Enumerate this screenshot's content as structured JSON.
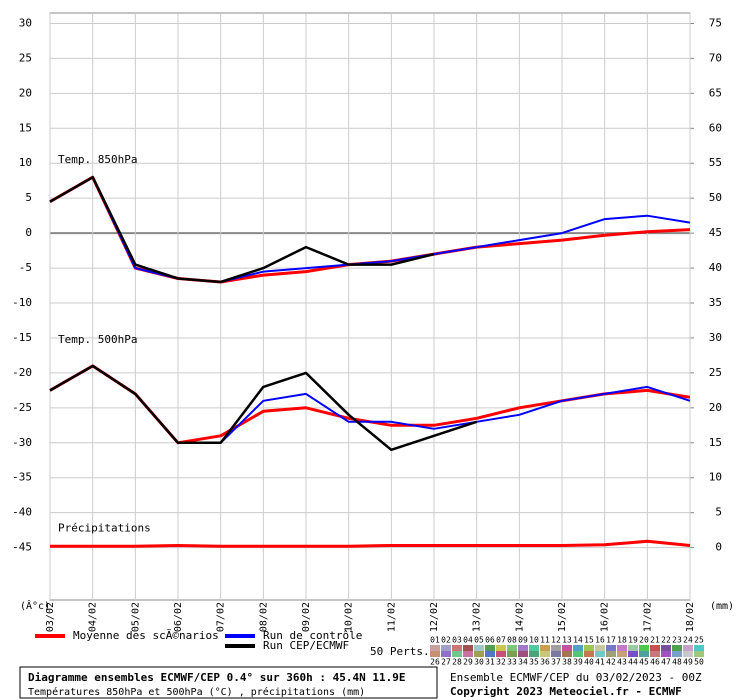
{
  "chart_data": {
    "type": "line",
    "categories": [
      "03/02",
      "04/02",
      "05/02",
      "06/02",
      "07/02",
      "08/02",
      "09/02",
      "10/02",
      "11/02",
      "12/02",
      "13/02",
      "14/02",
      "15/02",
      "16/02",
      "17/02",
      "18/02"
    ],
    "ylim": [
      -52.5,
      31.5
    ],
    "yticks": [
      -45,
      -40,
      -35,
      -30,
      -25,
      -20,
      -15,
      -10,
      -5,
      0,
      5,
      10,
      15,
      20,
      25,
      30
    ],
    "y2lim": [
      -7.5,
      76.5
    ],
    "y2ticks": [
      0,
      5,
      10,
      15,
      20,
      25,
      30,
      35,
      40,
      45,
      50,
      55,
      60,
      65,
      70,
      75
    ],
    "grid": true,
    "y_unit_label": "(Â°c)",
    "y2_unit_label": "(mm)",
    "annotations": [
      "Temp. 850hPa",
      "Temp. 500hPa",
      "Précipitations"
    ],
    "series": [
      {
        "name": "Moyenne des scÃ©narios",
        "color": "#ff0000",
        "width": 3,
        "values": [
          4.5,
          8,
          -5,
          -6.5,
          -7,
          -6,
          -5.5,
          -4.5,
          -4,
          -3,
          -2,
          -1.5,
          -1,
          -0.3,
          0.2,
          0.5
        ]
      },
      {
        "name": "Moyenne des scÃ©narios",
        "color": "#ff0000",
        "width": 3,
        "legend": false,
        "values": [
          -22.5,
          -19,
          -23,
          -30,
          -29,
          -25.5,
          -25,
          -26.5,
          -27.5,
          -27.5,
          -26.5,
          -25,
          -24,
          -23,
          -22.5,
          -23.5
        ]
      },
      {
        "name": "Moyenne des scÃ©narios",
        "color": "#ff0000",
        "width": 3,
        "axis": "y2",
        "legend": false,
        "values": [
          0.2,
          0.2,
          0.2,
          0.3,
          0.2,
          0.2,
          0.2,
          0.2,
          0.3,
          0.3,
          0.3,
          0.3,
          0.3,
          0.4,
          0.9,
          0.3
        ]
      },
      {
        "name": "Run de contrôle",
        "color": "#0000ff",
        "width": 2,
        "values": [
          4.5,
          8,
          -5,
          -6.5,
          -7,
          -5.5,
          -5,
          -4.5,
          -4,
          -3,
          -2,
          -1,
          0,
          2,
          2.5,
          1.5
        ]
      },
      {
        "name": "Run de contrôle",
        "color": "#0000ff",
        "width": 2,
        "legend": false,
        "values": [
          -22.5,
          -19,
          -23,
          -30,
          -30,
          -24,
          -23,
          -27,
          -27,
          -28,
          -27,
          -26,
          -24,
          -23,
          -22,
          -24
        ]
      },
      {
        "name": "Run CEP/ECMWF",
        "color": "#000000",
        "width": 2.5,
        "values": [
          4.5,
          8,
          -4.5,
          -6.5,
          -7,
          -5,
          -2,
          -4.5,
          -4.5,
          -3,
          null,
          null,
          null,
          null,
          null,
          null
        ]
      },
      {
        "name": "Run CEP/ECMWF",
        "color": "#000000",
        "width": 2.5,
        "legend": false,
        "values": [
          -22.5,
          -19,
          -23,
          -30,
          -30,
          -22,
          -20,
          -26,
          -31,
          -29,
          -27,
          null,
          null,
          null,
          null,
          null
        ]
      }
    ],
    "perturbations_label": "50 Perts.",
    "perturbation_labels": [
      "01",
      "02",
      "03",
      "04",
      "05",
      "06",
      "07",
      "08",
      "09",
      "10",
      "11",
      "12",
      "13",
      "14",
      "15",
      "16",
      "17",
      "18",
      "19",
      "20",
      "21",
      "22",
      "23",
      "24",
      "25",
      "26",
      "27",
      "28",
      "29",
      "30",
      "31",
      "32",
      "33",
      "34",
      "35",
      "36",
      "37",
      "38",
      "39",
      "40",
      "41",
      "42",
      "43",
      "44",
      "45",
      "46",
      "47",
      "48",
      "49",
      "50"
    ],
    "perturbation_colors": [
      "#c8a0a0",
      "#a0a0c8",
      "#c87878",
      "#a05050",
      "#a0c8c8",
      "#50a050",
      "#c8c850",
      "#78c878",
      "#a078c8",
      "#50c8a0",
      "#c8a050",
      "#a0a0a0",
      "#c850a0",
      "#50a0c8",
      "#a0c850",
      "#c8c8a0",
      "#7878c8",
      "#c878c8",
      "#a0c8a0",
      "#50c850",
      "#c85050",
      "#7850a0",
      "#50a050",
      "#c8a0c8",
      "#50c8c8",
      "#c89070",
      "#9070c8",
      "#70c890",
      "#c870a0",
      "#a0a050",
      "#5078c8",
      "#c85078",
      "#78a050",
      "#a05078",
      "#50a078",
      "#c8c878",
      "#7878a0",
      "#a07850",
      "#50c878",
      "#c87850",
      "#78c8c8",
      "#a0a078",
      "#c8a078",
      "#7850c8",
      "#50a0a0",
      "#c87878",
      "#a050c8",
      "#78a0c8",
      "#c8c8c8",
      "#a0c878"
    ]
  },
  "footer": {
    "title": "Diagramme ensembles ECMWF/CEP 0.4° sur 360h : 45.4N 11.9E",
    "subtitle": "Températures 850hPa et 500hPa (°C) , précipitations (mm)",
    "run": "Ensemble ECMWF/CEP du 03/02/2023 - 00Z",
    "copyright": "Copyright 2023 Meteociel.fr - ECMWF"
  }
}
